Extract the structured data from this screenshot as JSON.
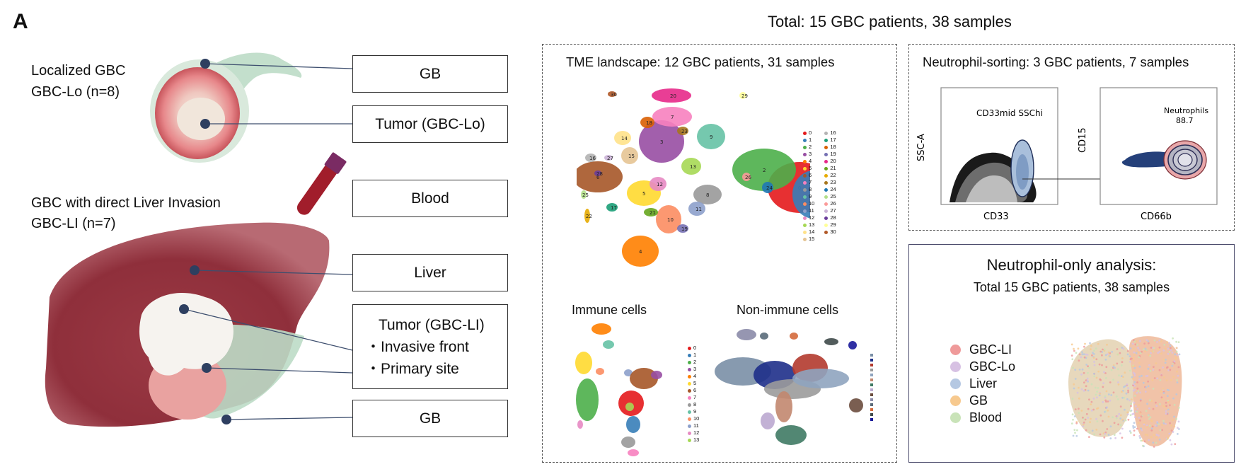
{
  "panel_label": "A",
  "total_title": "Total: 15 GBC patients, 38 samples",
  "left": {
    "group_lo_title": "Localized GBC",
    "group_lo_sub": "GBC-Lo (n=8)",
    "group_li_title": "GBC with direct Liver Invasion",
    "group_li_sub": "GBC-LI (n=7)",
    "boxes": {
      "gb_top": "GB",
      "tumor_lo": "Tumor (GBC-Lo)",
      "blood": "Blood",
      "liver": "Liver",
      "tumor_li": "Tumor (GBC-LI)",
      "invasive_front": "・Invasive front",
      "primary_site": "・Primary site",
      "gb_bottom": "GB"
    }
  },
  "tme": {
    "title": "TME landscape: 12 GBC patients, 31 samples",
    "immune_title": "Immune cells",
    "nonimmune_title": "Non-immune cells",
    "main_clusters": [
      "0",
      "1",
      "2",
      "3",
      "4",
      "5",
      "6",
      "7",
      "8",
      "9",
      "10",
      "11",
      "12",
      "13",
      "14",
      "15",
      "16",
      "17",
      "18",
      "19",
      "20",
      "21",
      "22",
      "23",
      "24",
      "25",
      "26",
      "27",
      "28",
      "29",
      "30"
    ],
    "immune_clusters": [
      "0",
      "1",
      "2",
      "3",
      "4",
      "5",
      "6",
      "7",
      "8",
      "9",
      "10",
      "11",
      "12",
      "13"
    ],
    "colors": [
      "#e41a1c",
      "#377eb8",
      "#4daf4a",
      "#984ea3",
      "#ff7f00",
      "#ffd92f",
      "#a65628",
      "#f781bf",
      "#999999",
      "#66c2a5",
      "#fc8d62",
      "#8da0cb",
      "#e78ac3",
      "#a6d854",
      "#ffe28a",
      "#e5c494",
      "#b3b3b3",
      "#1b9e77",
      "#d95f02",
      "#7570b3",
      "#e7298a",
      "#66a61e",
      "#e6ab02",
      "#a6761d",
      "#1f78b4",
      "#b2df8a",
      "#fb9a99",
      "#cab2d6",
      "#6a3d9a",
      "#ffff99",
      "#b15928"
    ]
  },
  "sorting": {
    "title": "Neutrophil-sorting: 3 GBC patients, 7 samples",
    "gate1_label": "CD33mid SSChi",
    "gate1_y": "SSC-A",
    "gate1_x": "CD33",
    "gate2_label": "Neutrophils",
    "gate2_value": "88.7",
    "gate2_y": "CD15",
    "gate2_x": "CD66b"
  },
  "neutro": {
    "title": "Neutrophil-only analysis:",
    "subtitle": "Total 15 GBC patients, 38 samples",
    "legend": [
      {
        "label": "GBC-LI",
        "color": "#ef9a9a"
      },
      {
        "label": "GBC-Lo",
        "color": "#d7c1e3"
      },
      {
        "label": "Liver",
        "color": "#b5c8e2"
      },
      {
        "label": "GB",
        "color": "#f7c98e"
      },
      {
        "label": "Blood",
        "color": "#c9e3b8"
      }
    ]
  }
}
